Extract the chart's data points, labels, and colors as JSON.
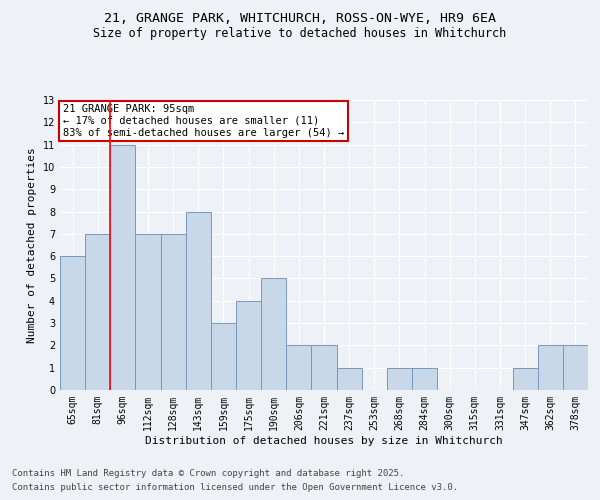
{
  "title_line1": "21, GRANGE PARK, WHITCHURCH, ROSS-ON-WYE, HR9 6EA",
  "title_line2": "Size of property relative to detached houses in Whitchurch",
  "xlabel": "Distribution of detached houses by size in Whitchurch",
  "ylabel": "Number of detached properties",
  "categories": [
    "65sqm",
    "81sqm",
    "96sqm",
    "112sqm",
    "128sqm",
    "143sqm",
    "159sqm",
    "175sqm",
    "190sqm",
    "206sqm",
    "221sqm",
    "237sqm",
    "253sqm",
    "268sqm",
    "284sqm",
    "300sqm",
    "315sqm",
    "331sqm",
    "347sqm",
    "362sqm",
    "378sqm"
  ],
  "values": [
    6,
    7,
    11,
    7,
    7,
    8,
    3,
    4,
    5,
    2,
    2,
    1,
    0,
    1,
    1,
    0,
    0,
    0,
    1,
    2,
    2
  ],
  "bar_color": "#c8d8e8",
  "bar_edge_color": "#7799bb",
  "red_line_index": 2,
  "annotation_text": "21 GRANGE PARK: 95sqm\n← 17% of detached houses are smaller (11)\n83% of semi-detached houses are larger (54) →",
  "annotation_box_color": "#ffffff",
  "annotation_box_edge_color": "#cc0000",
  "ylim": [
    0,
    13
  ],
  "yticks": [
    0,
    1,
    2,
    3,
    4,
    5,
    6,
    7,
    8,
    9,
    10,
    11,
    12,
    13
  ],
  "footer_line1": "Contains HM Land Registry data © Crown copyright and database right 2025.",
  "footer_line2": "Contains public sector information licensed under the Open Government Licence v3.0.",
  "background_color": "#eef2f7",
  "grid_color": "#ffffff",
  "title_fontsize": 9.5,
  "subtitle_fontsize": 8.5,
  "axis_label_fontsize": 8,
  "tick_fontsize": 7,
  "annotation_fontsize": 7.5,
  "footer_fontsize": 6.5
}
